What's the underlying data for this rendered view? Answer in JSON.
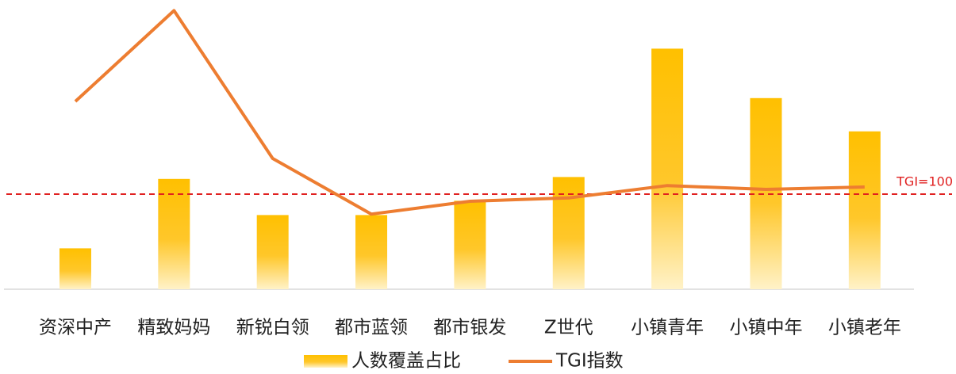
{
  "chart_data": {
    "type": "bar_line",
    "categories": [
      "资深中产",
      "精致妈妈",
      "新锐白领",
      "都市蓝领",
      "都市银发",
      "Z世代",
      "小镇青年",
      "小镇中年",
      "小镇老年"
    ],
    "series": [
      {
        "name": "人数覆盖占比",
        "type": "bar",
        "color": "#FFC000",
        "values": [
          4.3,
          11.6,
          7.8,
          7.8,
          9.3,
          11.8,
          25.3,
          20.1,
          16.6
        ]
      },
      {
        "name": "TGI指数",
        "type": "line",
        "axis": "y2",
        "color": "#ED7D31",
        "values": [
          197.5,
          293,
          137.5,
          79,
          92.5,
          96,
          109,
          105,
          107.5
        ]
      }
    ],
    "ylim": [
      0,
      30
    ],
    "y2lim": [
      0,
      300
    ],
    "reference_line": {
      "value": 100,
      "label": "TGI=100",
      "color": "#E02020"
    },
    "legend": "bottom"
  }
}
